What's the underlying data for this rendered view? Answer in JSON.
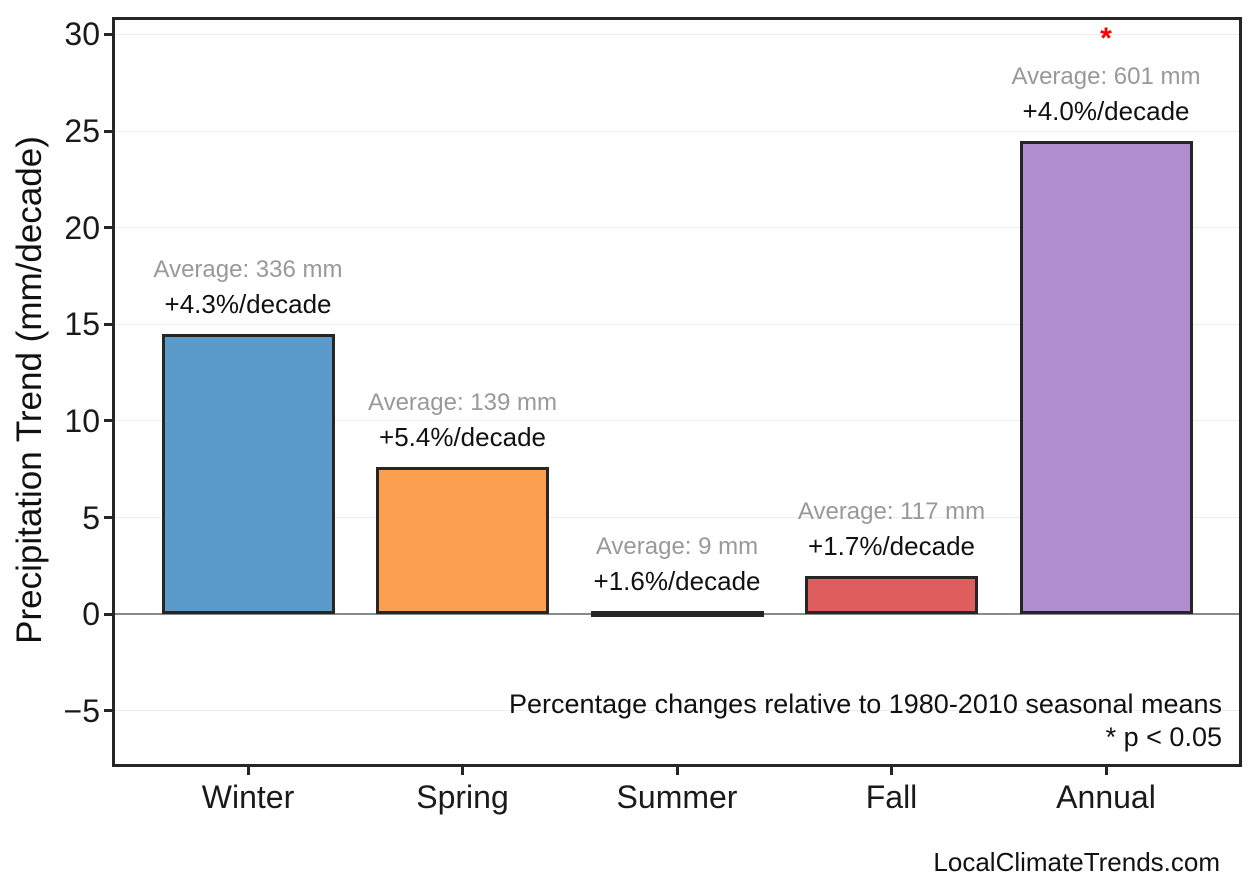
{
  "chart_data": {
    "type": "bar",
    "title": "",
    "xlabel": "",
    "ylabel": "Precipitation Trend (mm/decade)",
    "ylim": [
      -7.9,
      30.9
    ],
    "yticks": [
      -5,
      0,
      5,
      10,
      15,
      20,
      25,
      30
    ],
    "ytick_labels": [
      "−5",
      "0",
      "5",
      "10",
      "15",
      "20",
      "25",
      "30"
    ],
    "grid": "horizontal faint gridlines at each tick; emphasized gray line at zero",
    "legend": "none",
    "categories": [
      "Winter",
      "Spring",
      "Summer",
      "Fall",
      "Annual"
    ],
    "values": [
      14.5,
      7.6,
      0.15,
      2.0,
      24.5
    ],
    "bar_colors": [
      "#5B9BC9",
      "#FCA04F",
      "#61B861",
      "#E05D5E",
      "#AF8DCE"
    ],
    "bar_edge_color": "#262626",
    "averages_mm": [
      336,
      139,
      9,
      117,
      601
    ],
    "average_labels": [
      "Average: 336 mm",
      "Average: 139 mm",
      "Average: 9 mm",
      "Average: 117 mm",
      "Average: 601 mm"
    ],
    "trend_labels": [
      "+4.3%/decade",
      "+5.4%/decade",
      "+1.6%/decade",
      "+1.7%/decade",
      "+4.0%/decade"
    ],
    "significant": [
      false,
      false,
      false,
      false,
      true
    ],
    "significance_marker": "*",
    "colors": {
      "average_label": "#999999",
      "significance": "#ff0000",
      "zero_line": "#8a8a8a",
      "gridline": "#ececec",
      "spine": "#262626"
    },
    "notes": [
      "Percentage changes relative to 1980-2010 seasonal means",
      "* p < 0.05"
    ]
  },
  "page": {
    "watermark": "LocalClimateTrends.com"
  }
}
